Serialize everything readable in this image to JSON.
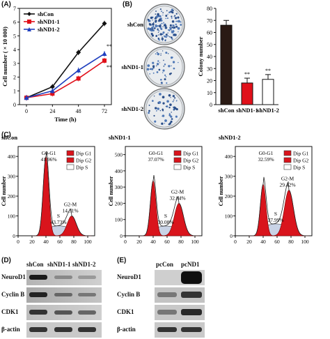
{
  "panel_a": {
    "letter": "(A)",
    "legend": [
      "shCon",
      "shND1-1",
      "shND1-2"
    ],
    "ylabel": "Cell number ( × 10 000)",
    "xlabel": "Time (h)",
    "xticks": [
      "0",
      "24",
      "48",
      "72"
    ],
    "yticks": [
      "0",
      "1",
      "2",
      "3",
      "4",
      "5",
      "6",
      "7"
    ],
    "sig_marks": [
      "**",
      "**"
    ]
  },
  "panel_b": {
    "letter": "(B)",
    "dish_labels": [
      "shCon",
      "shND1-1",
      "shND1-2"
    ],
    "ylabel": "Colony number",
    "yticks": [
      "0",
      "10",
      "20",
      "30",
      "40",
      "50",
      "60",
      "70",
      "80"
    ],
    "categories": [
      "shCon",
      "shND1-1",
      "shND1-2"
    ],
    "sig_marks": [
      "**",
      "**"
    ]
  },
  "panel_c": {
    "letter": "(C)",
    "ylabel": "Cell number",
    "legend": [
      "Dip G1",
      "Dip G2",
      "Dip S"
    ],
    "plots": [
      {
        "title": "shCon",
        "g1": "41.96%",
        "g2": "14.31%",
        "s": "43.73%",
        "yticks": [
          "0",
          "100",
          "200",
          "300",
          "400"
        ]
      },
      {
        "title": "shND1-1",
        "g1": "37.07%",
        "g2": "32.84%",
        "s": "30.08%",
        "yticks": [
          "0",
          "100",
          "200",
          "300",
          "400",
          "500"
        ]
      },
      {
        "title": "shND1-2",
        "g1": "32.59%",
        "g2": "29.42%",
        "s": "37.99%",
        "yticks": [
          "0",
          "100",
          "200",
          "300",
          "400"
        ]
      }
    ],
    "xticks": [
      "0",
      "20",
      "40",
      "60",
      "80",
      "100"
    ],
    "g1_label": "G0-G1",
    "g2_label": "G2-M",
    "s_label": "S"
  },
  "panel_d": {
    "letter": "(D)",
    "lanes": [
      "shCon",
      "shND1-1",
      "shND1-2"
    ],
    "rows": [
      "NeuroD1",
      "Cyclin B",
      "CDK1",
      "β-actin"
    ]
  },
  "panel_e": {
    "letter": "(E)",
    "lanes": [
      "pcCon",
      "pcND1"
    ],
    "rows": [
      "NeuroD1",
      "Cyclin B",
      "CDK1",
      "β-actin"
    ]
  },
  "chart_data": [
    {
      "type": "line",
      "x": [
        0,
        24,
        48,
        72
      ],
      "xlabel": "Time (h)",
      "ylabel": "Cell number ( × 10 000)",
      "ylim": [
        0,
        7
      ],
      "series": [
        {
          "name": "shCon",
          "values": [
            0.5,
            1.3,
            3.8,
            5.9
          ],
          "color": "#111111"
        },
        {
          "name": "shND1-1",
          "values": [
            0.5,
            0.8,
            1.9,
            3.2
          ],
          "color": "#e0101a"
        },
        {
          "name": "shND1-2",
          "values": [
            0.5,
            1.0,
            2.5,
            3.7
          ],
          "color": "#1f3fbf"
        }
      ]
    },
    {
      "type": "bar",
      "categories": [
        "shCon",
        "shND1-1",
        "shND1-2"
      ],
      "values": [
        66,
        18,
        21
      ],
      "errors": [
        4,
        4,
        4
      ],
      "colors": [
        "#2a1a14",
        "#e0101a",
        "#ffffff"
      ],
      "ylabel": "Colony number",
      "ylim": [
        0,
        80
      ]
    }
  ]
}
